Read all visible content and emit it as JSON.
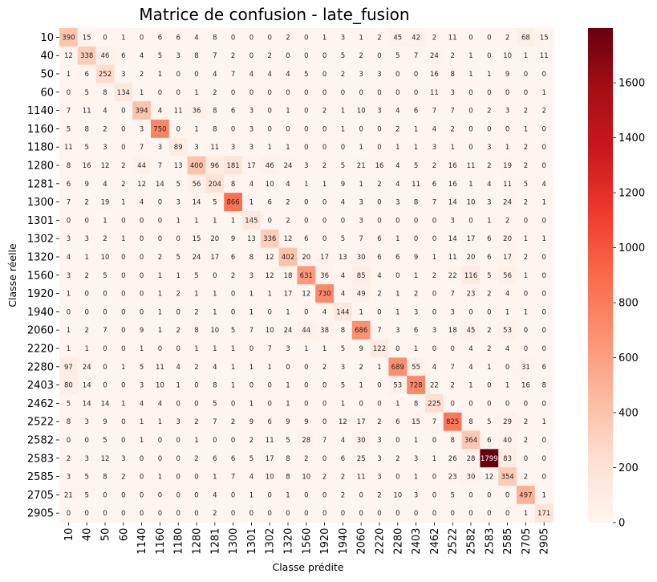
{
  "chart_data": {
    "type": "heatmap",
    "title": "Matrice de confusion - late_fusion",
    "xlabel": "Classe prédite",
    "ylabel": "Classe réelle",
    "labels": [
      "10",
      "40",
      "50",
      "60",
      "1140",
      "1160",
      "1180",
      "1280",
      "1281",
      "1300",
      "1301",
      "1302",
      "1320",
      "1560",
      "1920",
      "1940",
      "2060",
      "2220",
      "2280",
      "2403",
      "2462",
      "2522",
      "2582",
      "2583",
      "2585",
      "2705",
      "2905"
    ],
    "colorbar": {
      "min": 0,
      "max": 1799,
      "ticks": [
        0,
        200,
        400,
        600,
        800,
        1000,
        1200,
        1400,
        1600
      ]
    },
    "colormap": "Reds",
    "matrix": [
      [
        390,
        15,
        0,
        1,
        0,
        6,
        6,
        4,
        8,
        0,
        0,
        0,
        2,
        0,
        1,
        3,
        1,
        2,
        45,
        42,
        2,
        11,
        0,
        0,
        2,
        68,
        15
      ],
      [
        12,
        338,
        46,
        6,
        4,
        5,
        3,
        8,
        7,
        2,
        0,
        2,
        0,
        0,
        0,
        5,
        2,
        0,
        5,
        7,
        24,
        2,
        1,
        0,
        10,
        1,
        11
      ],
      [
        1,
        6,
        252,
        3,
        2,
        1,
        0,
        0,
        4,
        7,
        4,
        4,
        4,
        5,
        0,
        2,
        3,
        3,
        0,
        0,
        16,
        8,
        1,
        1,
        9,
        0,
        0
      ],
      [
        0,
        5,
        8,
        134,
        1,
        0,
        0,
        1,
        2,
        0,
        0,
        0,
        0,
        0,
        0,
        0,
        0,
        0,
        0,
        0,
        11,
        3,
        0,
        0,
        0,
        0,
        1
      ],
      [
        7,
        11,
        4,
        0,
        394,
        4,
        11,
        36,
        8,
        6,
        3,
        0,
        1,
        0,
        2,
        1,
        10,
        3,
        4,
        6,
        7,
        7,
        0,
        2,
        3,
        2,
        2
      ],
      [
        5,
        8,
        2,
        0,
        3,
        750,
        0,
        1,
        8,
        0,
        3,
        0,
        0,
        0,
        0,
        1,
        0,
        0,
        2,
        1,
        4,
        2,
        0,
        0,
        0,
        1,
        0
      ],
      [
        11,
        5,
        3,
        0,
        7,
        3,
        89,
        3,
        11,
        3,
        3,
        1,
        1,
        0,
        0,
        0,
        1,
        0,
        1,
        1,
        3,
        1,
        0,
        3,
        1,
        2,
        0
      ],
      [
        8,
        16,
        12,
        2,
        44,
        7,
        13,
        400,
        96,
        181,
        17,
        46,
        24,
        3,
        2,
        5,
        21,
        16,
        4,
        5,
        2,
        16,
        11,
        2,
        19,
        2,
        0
      ],
      [
        6,
        9,
        4,
        2,
        12,
        14,
        5,
        56,
        204,
        8,
        4,
        10,
        4,
        1,
        1,
        9,
        1,
        2,
        4,
        11,
        6,
        16,
        1,
        4,
        11,
        5,
        4
      ],
      [
        7,
        2,
        19,
        1,
        4,
        0,
        3,
        14,
        5,
        866,
        1,
        6,
        2,
        0,
        0,
        4,
        3,
        0,
        3,
        8,
        7,
        14,
        10,
        3,
        24,
        2,
        1
      ],
      [
        0,
        0,
        1,
        0,
        0,
        0,
        1,
        1,
        1,
        1,
        145,
        0,
        2,
        0,
        0,
        0,
        3,
        0,
        0,
        0,
        0,
        3,
        0,
        1,
        2,
        0,
        0
      ],
      [
        3,
        3,
        2,
        1,
        0,
        0,
        0,
        15,
        20,
        9,
        13,
        336,
        12,
        6,
        0,
        5,
        7,
        6,
        1,
        0,
        0,
        14,
        17,
        6,
        20,
        1,
        1
      ],
      [
        4,
        1,
        10,
        0,
        0,
        2,
        5,
        24,
        17,
        6,
        8,
        12,
        402,
        20,
        17,
        13,
        30,
        6,
        6,
        9,
        1,
        11,
        20,
        6,
        17,
        2,
        0
      ],
      [
        3,
        2,
        5,
        0,
        0,
        1,
        1,
        5,
        0,
        2,
        3,
        12,
        18,
        631,
        36,
        4,
        85,
        4,
        0,
        1,
        2,
        22,
        116,
        5,
        56,
        1,
        0
      ],
      [
        1,
        0,
        0,
        0,
        0,
        1,
        2,
        1,
        1,
        0,
        1,
        1,
        17,
        12,
        730,
        4,
        49,
        2,
        1,
        2,
        0,
        7,
        23,
        2,
        4,
        0,
        0
      ],
      [
        0,
        0,
        0,
        0,
        0,
        1,
        0,
        2,
        1,
        0,
        1,
        0,
        1,
        0,
        4,
        144,
        1,
        0,
        1,
        3,
        0,
        3,
        0,
        0,
        1,
        1,
        0
      ],
      [
        1,
        2,
        7,
        0,
        9,
        1,
        2,
        8,
        10,
        5,
        7,
        10,
        24,
        44,
        38,
        8,
        686,
        7,
        3,
        6,
        3,
        18,
        45,
        2,
        53,
        0,
        0
      ],
      [
        1,
        1,
        0,
        0,
        1,
        0,
        0,
        1,
        1,
        1,
        0,
        7,
        3,
        1,
        1,
        5,
        9,
        122,
        0,
        1,
        0,
        0,
        4,
        2,
        4,
        0,
        0
      ],
      [
        97,
        24,
        0,
        1,
        5,
        11,
        4,
        2,
        4,
        1,
        1,
        1,
        0,
        0,
        2,
        3,
        2,
        1,
        689,
        55,
        4,
        7,
        4,
        1,
        0,
        31,
        6
      ],
      [
        80,
        14,
        0,
        0,
        3,
        10,
        1,
        0,
        8,
        1,
        0,
        0,
        1,
        0,
        0,
        5,
        1,
        0,
        53,
        728,
        22,
        2,
        1,
        0,
        1,
        16,
        8
      ],
      [
        5,
        14,
        14,
        1,
        4,
        4,
        0,
        0,
        5,
        0,
        1,
        0,
        1,
        0,
        0,
        1,
        0,
        0,
        1,
        8,
        225,
        0,
        0,
        0,
        0,
        0,
        0
      ],
      [
        8,
        3,
        9,
        0,
        1,
        1,
        3,
        2,
        7,
        2,
        9,
        6,
        9,
        9,
        0,
        12,
        17,
        2,
        6,
        15,
        7,
        825,
        8,
        5,
        29,
        2,
        1
      ],
      [
        0,
        0,
        5,
        0,
        1,
        0,
        0,
        1,
        0,
        0,
        2,
        11,
        5,
        28,
        7,
        4,
        30,
        3,
        0,
        1,
        0,
        8,
        364,
        6,
        40,
        2,
        0
      ],
      [
        2,
        3,
        12,
        3,
        0,
        0,
        0,
        2,
        6,
        6,
        5,
        17,
        8,
        2,
        0,
        6,
        25,
        3,
        2,
        3,
        1,
        26,
        28,
        1799,
        83,
        0,
        0
      ],
      [
        3,
        5,
        8,
        2,
        0,
        1,
        0,
        0,
        1,
        7,
        4,
        10,
        8,
        10,
        2,
        2,
        11,
        3,
        0,
        1,
        0,
        23,
        30,
        12,
        354,
        2,
        0
      ],
      [
        21,
        5,
        0,
        0,
        0,
        0,
        0,
        0,
        4,
        0,
        1,
        0,
        1,
        0,
        0,
        2,
        0,
        2,
        10,
        3,
        0,
        5,
        0,
        0,
        0,
        497,
        1
      ],
      [
        0,
        0,
        0,
        0,
        0,
        0,
        0,
        0,
        2,
        0,
        0,
        0,
        0,
        0,
        0,
        0,
        0,
        0,
        0,
        0,
        0,
        0,
        0,
        0,
        0,
        1,
        171
      ]
    ]
  }
}
